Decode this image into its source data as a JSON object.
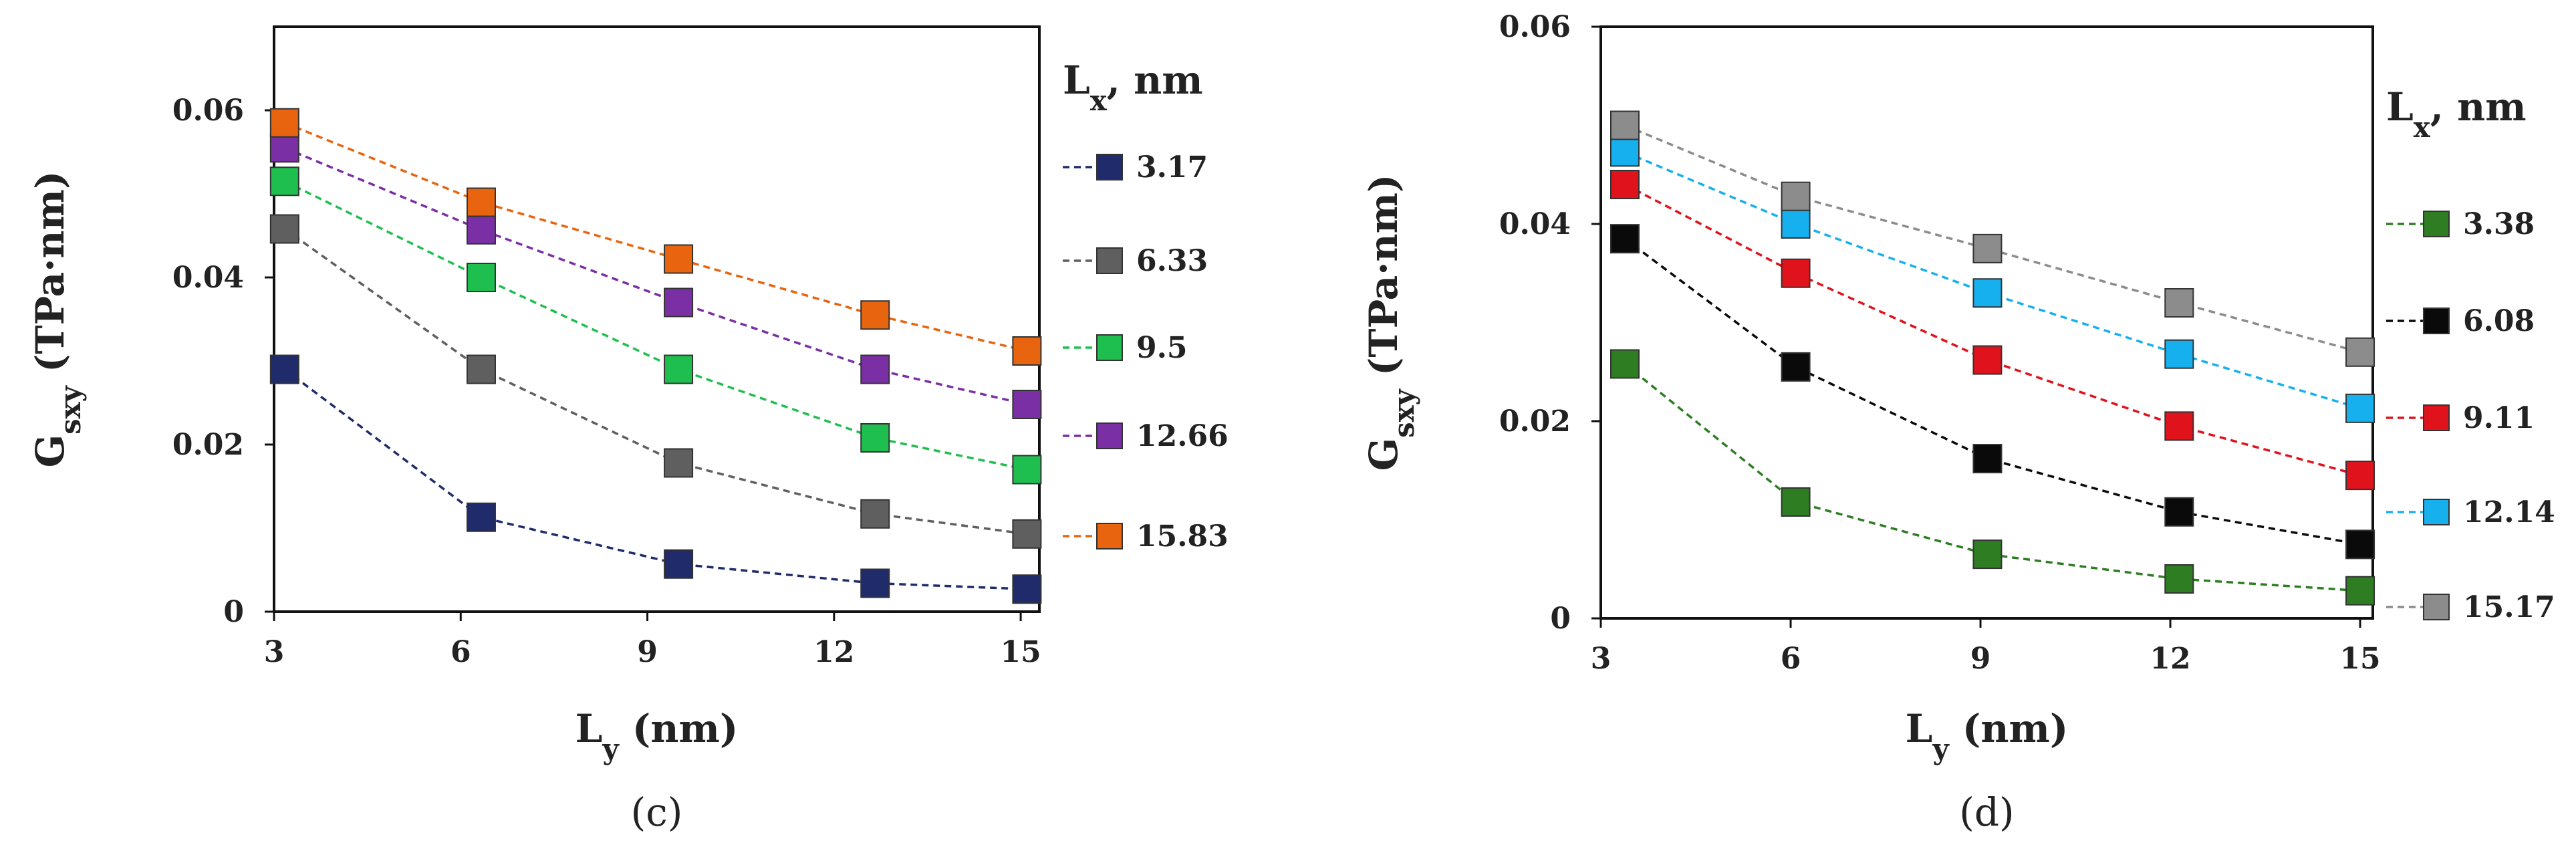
{
  "chart_data": [
    {
      "type": "line",
      "panel_label": "(c)",
      "xlabel": "L",
      "xlabel_sub": "y",
      "xlabel_unit": " (nm)",
      "ylabel": "G",
      "ylabel_sub": "sxy",
      "ylabel_unit": " (TPa·nm)",
      "legend_title": "L",
      "legend_title_sub": "x",
      "legend_title_unit": ", nm",
      "legend_position": "right",
      "xlim": [
        3,
        15.3
      ],
      "ylim": [
        0,
        0.07
      ],
      "xticks": [
        3,
        6,
        9,
        12,
        15
      ],
      "xtick_labels": [
        "3",
        "6",
        "9",
        "12",
        "15"
      ],
      "yticks": [
        0,
        0.02,
        0.04,
        0.06
      ],
      "ytick_labels": [
        "0",
        "0.02",
        "0.04",
        "0.06"
      ],
      "x": [
        3.17,
        6.33,
        9.5,
        12.66,
        15.1
      ],
      "series": [
        {
          "name": "3.17",
          "color": "#1f2b6b",
          "values": [
            0.029,
            0.0113,
            0.0057,
            0.0034,
            0.0027
          ]
        },
        {
          "name": "6.33",
          "color": "#5f5f5f",
          "values": [
            0.0458,
            0.029,
            0.0178,
            0.0117,
            0.0093
          ]
        },
        {
          "name": "9.5",
          "color": "#1fbf4f",
          "values": [
            0.0515,
            0.04,
            0.029,
            0.0208,
            0.017
          ]
        },
        {
          "name": "12.66",
          "color": "#7a2fa5",
          "values": [
            0.0555,
            0.0457,
            0.037,
            0.029,
            0.0248
          ]
        },
        {
          "name": "15.83",
          "color": "#e8640f",
          "values": [
            0.0585,
            0.049,
            0.0422,
            0.0355,
            0.0312
          ]
        }
      ]
    },
    {
      "type": "line",
      "panel_label": "(d)",
      "xlabel": "L",
      "xlabel_sub": "y",
      "xlabel_unit": " (nm)",
      "ylabel": "G",
      "ylabel_sub": "sxy",
      "ylabel_unit": " (TPa·nm)",
      "legend_title": "L",
      "legend_title_sub": "x",
      "legend_title_unit": ", nm",
      "legend_position": "right",
      "xlim": [
        3,
        15.2
      ],
      "ylim": [
        0,
        0.06
      ],
      "xticks": [
        3,
        6,
        9,
        12,
        15
      ],
      "xtick_labels": [
        "3",
        "6",
        "9",
        "12",
        "15"
      ],
      "yticks": [
        0,
        0.02,
        0.04,
        0.06
      ],
      "ytick_labels": [
        "0",
        "0.02",
        "0.04",
        "0.06"
      ],
      "x": [
        3.38,
        6.08,
        9.11,
        12.14,
        15.0
      ],
      "series": [
        {
          "name": "3.38",
          "color": "#2e7d23",
          "values": [
            0.0258,
            0.0118,
            0.0065,
            0.004,
            0.0028
          ]
        },
        {
          "name": "6.08",
          "color": "#0a0a0a",
          "values": [
            0.0385,
            0.0255,
            0.0162,
            0.0108,
            0.0075
          ]
        },
        {
          "name": "9.11",
          "color": "#e0121b",
          "values": [
            0.044,
            0.035,
            0.0262,
            0.0195,
            0.0145
          ]
        },
        {
          "name": "12.14",
          "color": "#16b0ef",
          "values": [
            0.0473,
            0.04,
            0.033,
            0.0268,
            0.0213
          ]
        },
        {
          "name": "15.17",
          "color": "#8c8c8c",
          "values": [
            0.05,
            0.0428,
            0.0375,
            0.032,
            0.027
          ]
        }
      ]
    }
  ]
}
